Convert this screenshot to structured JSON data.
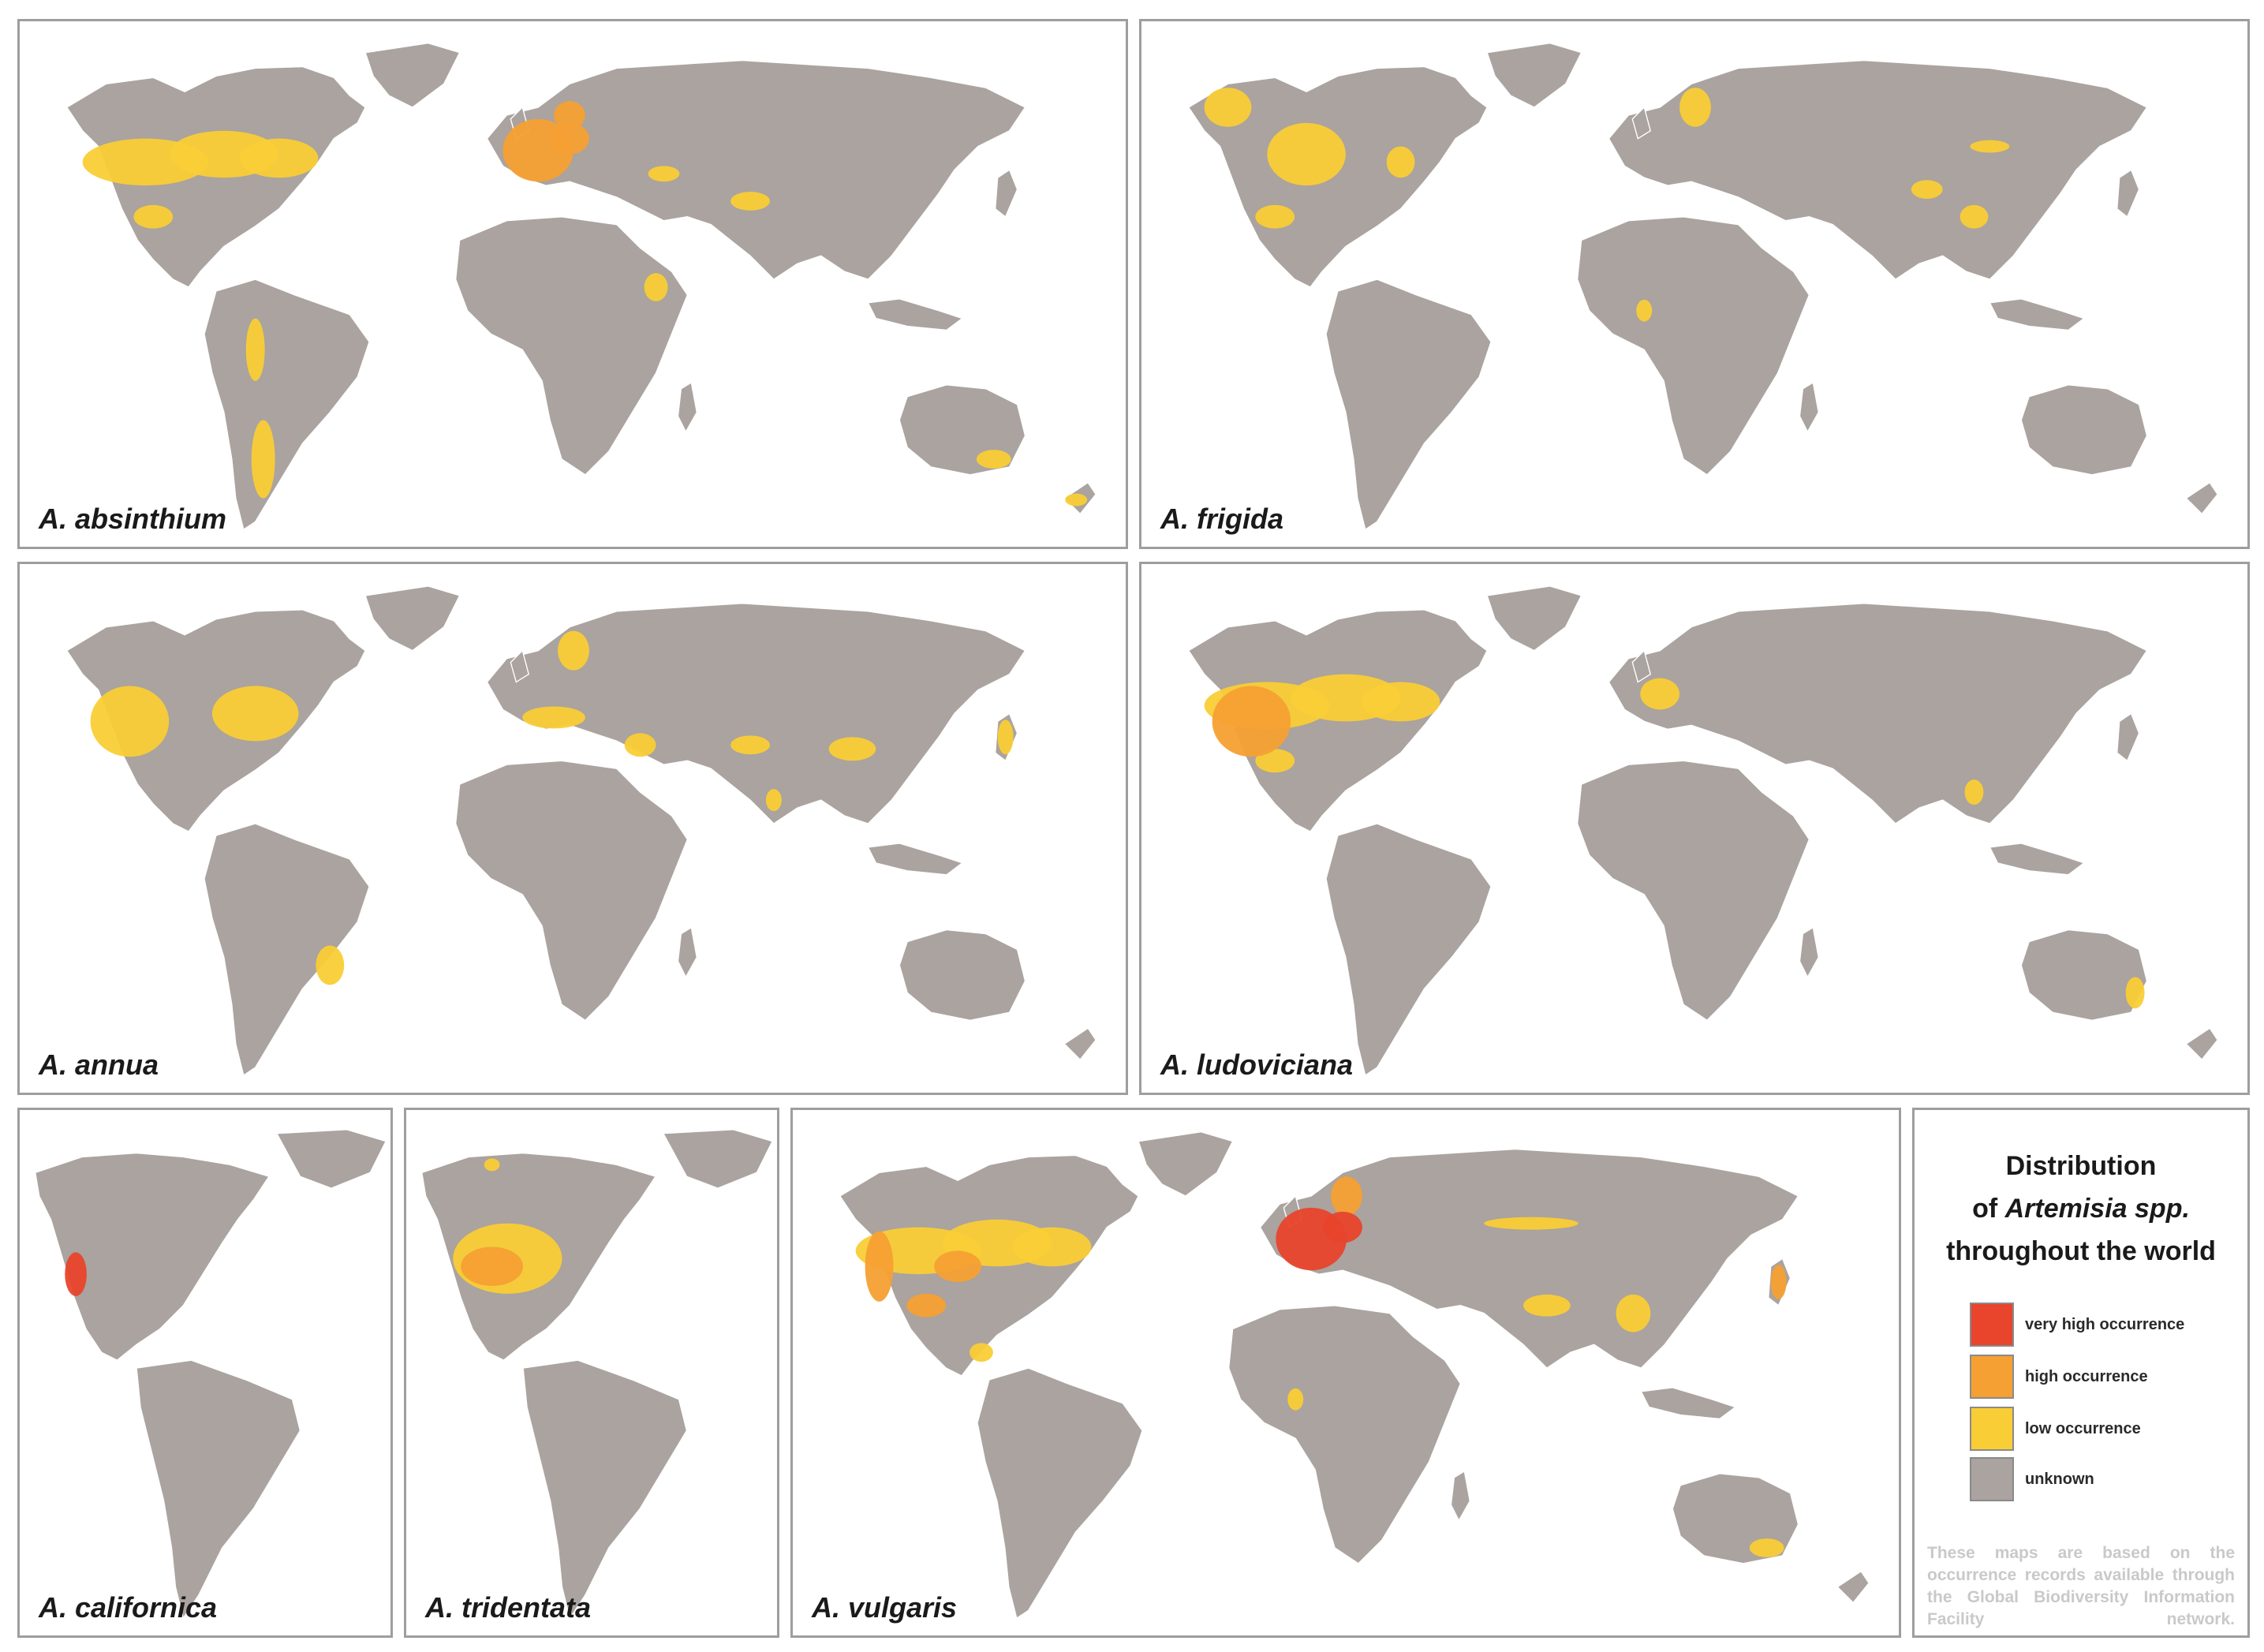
{
  "figure": {
    "title_line1": "Distribution",
    "title_line2_prefix": "of ",
    "title_line2_italic": "Artemisia spp.",
    "title_line3": "throughout the world",
    "note": "These maps are based on the occurrence records available through the Global Biodiversity Information Facility network."
  },
  "legend": [
    {
      "label": "very high occurrence",
      "color": "#e8452c"
    },
    {
      "label": "high occurrence",
      "color": "#f5a033"
    },
    {
      "label": "low occurrence",
      "color": "#f9cd36"
    },
    {
      "label": "unknown",
      "color": "#aaa39f"
    }
  ],
  "colors": {
    "land": "#aaa39f",
    "ocean": "#ffffff",
    "border": "#ffffff",
    "panel_frame": "#9e9e9e"
  },
  "maps": [
    {
      "species": "A. absinthium",
      "extent": "world",
      "occurrence": [
        {
          "region": "United States and southern Canada",
          "level": "low"
        },
        {
          "region": "Mexico",
          "level": "low"
        },
        {
          "region": "Western and Central Europe",
          "level": "high"
        },
        {
          "region": "Southern Scandinavia",
          "level": "high"
        },
        {
          "region": "Caucasus and Black Sea region",
          "level": "low"
        },
        {
          "region": "Central Asia",
          "level": "low"
        },
        {
          "region": "Ethiopia",
          "level": "low"
        },
        {
          "region": "Andes",
          "level": "low"
        },
        {
          "region": "Southern South America",
          "level": "low"
        },
        {
          "region": "Southeastern Australia",
          "level": "low"
        },
        {
          "region": "New Zealand",
          "level": "low"
        }
      ]
    },
    {
      "species": "A. frigida",
      "extent": "world",
      "occurrence": [
        {
          "region": "Alaska and western Canada",
          "level": "low"
        },
        {
          "region": "Great Plains of North America",
          "level": "low"
        },
        {
          "region": "Northeastern United States",
          "level": "low"
        },
        {
          "region": "Mexico",
          "level": "low"
        },
        {
          "region": "Scandinavia",
          "level": "low"
        },
        {
          "region": "Mongolia",
          "level": "low"
        },
        {
          "region": "Western China",
          "level": "low"
        },
        {
          "region": "Central China",
          "level": "low"
        },
        {
          "region": "West Africa",
          "level": "low"
        }
      ]
    },
    {
      "species": "A. annua",
      "extent": "world",
      "occurrence": [
        {
          "region": "Western United States",
          "level": "low"
        },
        {
          "region": "Eastern United States",
          "level": "low"
        },
        {
          "region": "Southern Europe",
          "level": "low"
        },
        {
          "region": "Scandinavia",
          "level": "low"
        },
        {
          "region": "Turkey and Middle East",
          "level": "low"
        },
        {
          "region": "Central Asia",
          "level": "low"
        },
        {
          "region": "China",
          "level": "low"
        },
        {
          "region": "Japan",
          "level": "low"
        },
        {
          "region": "India",
          "level": "low"
        },
        {
          "region": "Southeastern Brazil",
          "level": "low"
        }
      ]
    },
    {
      "species": "A. ludoviciana",
      "extent": "world",
      "occurrence": [
        {
          "region": "Western United States",
          "level": "high"
        },
        {
          "region": "United States and southern Canada",
          "level": "low"
        },
        {
          "region": "Mexico",
          "level": "low"
        },
        {
          "region": "Western Europe",
          "level": "low"
        },
        {
          "region": "Southeast Asia",
          "level": "low"
        },
        {
          "region": "Eastern Australia",
          "level": "low"
        }
      ]
    },
    {
      "species": "A. californica",
      "extent": "americas",
      "occurrence": [
        {
          "region": "California coast",
          "level": "very high"
        }
      ]
    },
    {
      "species": "A. tridentata",
      "extent": "americas",
      "occurrence": [
        {
          "region": "Great Basin and Rocky Mountains",
          "level": "high"
        },
        {
          "region": "Western United States",
          "level": "low"
        },
        {
          "region": "Alaska",
          "level": "low"
        }
      ]
    },
    {
      "species": "A. vulgaris",
      "extent": "world",
      "occurrence": [
        {
          "region": "United States and southern Canada",
          "level": "low"
        },
        {
          "region": "US Pacific coast",
          "level": "high"
        },
        {
          "region": "Great Plains",
          "level": "high"
        },
        {
          "region": "Mexico",
          "level": "high"
        },
        {
          "region": "Central America",
          "level": "low"
        },
        {
          "region": "Western and Central Europe",
          "level": "very high"
        },
        {
          "region": "Scandinavia",
          "level": "high"
        },
        {
          "region": "Siberia",
          "level": "low"
        },
        {
          "region": "Himalaya and Southeast Asia",
          "level": "low"
        },
        {
          "region": "Japan",
          "level": "high"
        },
        {
          "region": "West Africa",
          "level": "low"
        },
        {
          "region": "Southeastern Australia",
          "level": "low"
        }
      ]
    }
  ]
}
